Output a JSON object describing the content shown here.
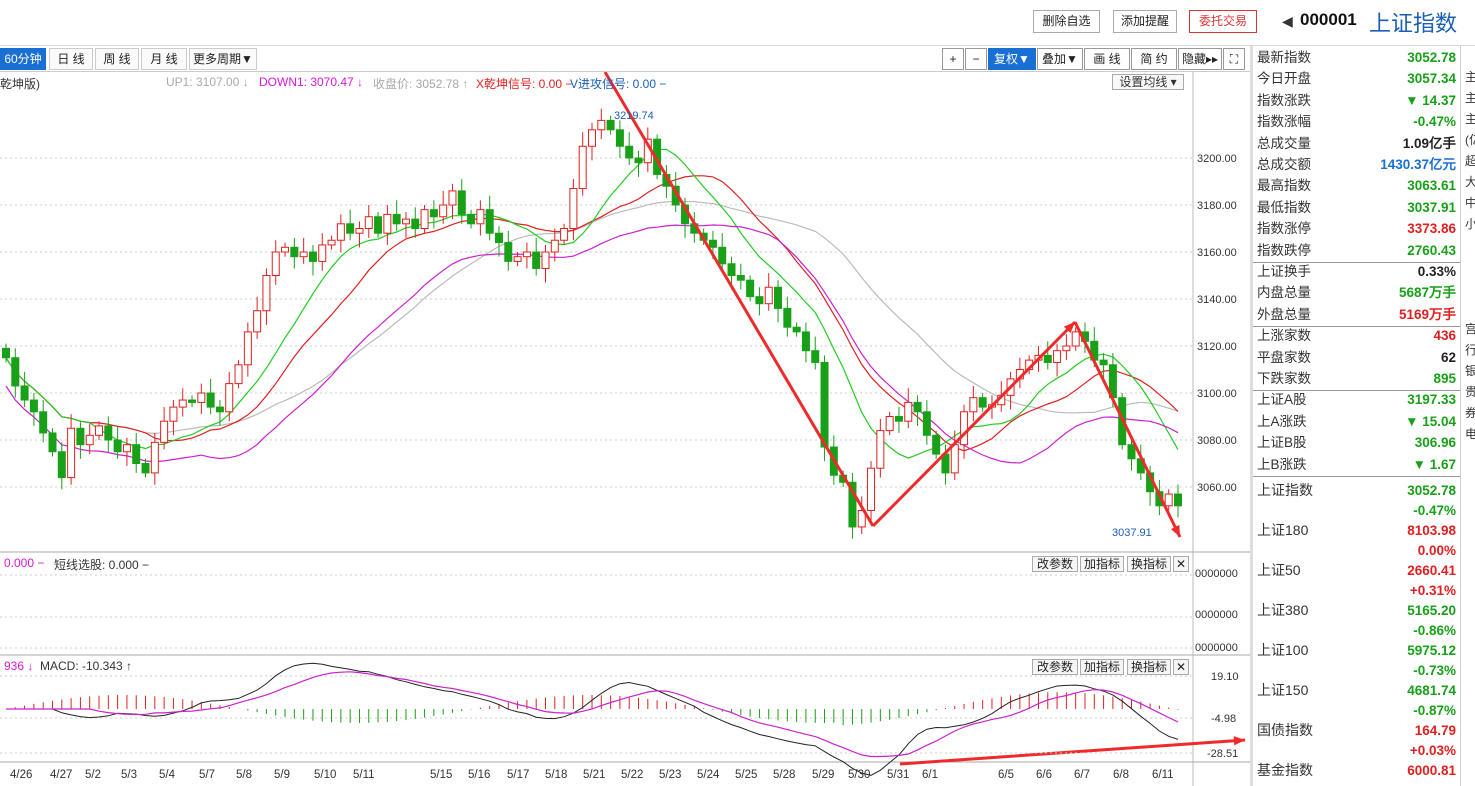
{
  "header": {
    "btn_del": "删除自选",
    "btn_alert": "添加提醒",
    "btn_trade": "委托交易",
    "code": "000001",
    "name": "上证指数"
  },
  "periods": [
    "60分钟",
    "日 线",
    "周 线",
    "月 线",
    "更多周期▼"
  ],
  "tools": [
    "+",
    "−",
    "复权▼",
    "叠加▼",
    "画 线",
    "简 约",
    "隐藏▸▸",
    "⛶"
  ],
  "legend": {
    "ver": "乾坤版)",
    "up1": "UP1: 3107.00 ↓",
    "down1": "DOWN1: 3070.47 ↓",
    "close": "收盘价: 3052.78 ↑",
    "x": "X乾坤信号: 0.00 −",
    "v": "V进攻信号: 0.00 −",
    "setma": "设置均线 ▾"
  },
  "price_axis": [
    "3200.00",
    "3180.00",
    "3160.00",
    "3140.00",
    "3120.00",
    "3100.00",
    "3080.00",
    "3060.00"
  ],
  "annot": {
    "high": "3219.74",
    "low": "3037.91"
  },
  "vol": {
    "label": "0.000 −",
    "label2": "短线选股: 0.000 −",
    "axis": [
      "0000000",
      "0000000",
      "0000000"
    ]
  },
  "macd": {
    "label": "936 ↓",
    "label2": "MACD: -10.343 ↑",
    "axis": [
      "19.10",
      "-4.98",
      "-28.51"
    ]
  },
  "panel_btns": [
    "改参数",
    "加指标",
    "换指标",
    "✕"
  ],
  "dates": [
    "4/26",
    "4/27",
    "5/2",
    "5/3",
    "5/4",
    "5/7",
    "5/8",
    "5/9",
    "5/10",
    "5/11",
    "5/15",
    "5/16",
    "5/17",
    "5/18",
    "5/21",
    "5/22",
    "5/23",
    "5/24",
    "5/25",
    "5/28",
    "5/29",
    "5/30",
    "5/31",
    "6/1",
    "6/5",
    "6/6",
    "6/7",
    "6/8",
    "6/11"
  ],
  "side": [
    {
      "l": "最新指数",
      "v": "3052.78",
      "c": "#18a018"
    },
    {
      "l": "今日开盘",
      "v": "3057.34",
      "c": "#18a018"
    },
    {
      "l": "指数涨跌",
      "v": "▼ 14.37",
      "c": "#18a018"
    },
    {
      "l": "指数涨幅",
      "v": "-0.47%",
      "c": "#18a018"
    },
    {
      "l": "总成交量",
      "v": "1.09亿手",
      "c": "#222"
    },
    {
      "l": "总成交额",
      "v": "1430.37亿元",
      "c": "#1a6fd4"
    },
    {
      "l": "最高指数",
      "v": "3063.61",
      "c": "#18a018"
    },
    {
      "l": "最低指数",
      "v": "3037.91",
      "c": "#18a018"
    },
    {
      "l": "指数涨停",
      "v": "3373.86",
      "c": "#e02020"
    },
    {
      "l": "指数跌停",
      "v": "2760.43",
      "c": "#18a018"
    },
    {
      "l": "上证换手",
      "v": "0.33%",
      "c": "#222"
    },
    {
      "l": "内盘总量",
      "v": "5687万手",
      "c": "#18a018"
    },
    {
      "l": "外盘总量",
      "v": "5169万手",
      "c": "#e02020"
    },
    {
      "l": "上涨家数",
      "v": "436",
      "c": "#e02020"
    },
    {
      "l": "平盘家数",
      "v": "62",
      "c": "#222"
    },
    {
      "l": "下跌家数",
      "v": "895",
      "c": "#18a018"
    },
    {
      "l": "上证A股",
      "v": "3197.33",
      "c": "#18a018"
    },
    {
      "l": "上A涨跌",
      "v": "▼ 15.04",
      "c": "#18a018"
    },
    {
      "l": "上证B股",
      "v": "306.96",
      "c": "#18a018"
    },
    {
      "l": "上B涨跌",
      "v": "▼ 1.67",
      "c": "#18a018"
    }
  ],
  "side2": [
    {
      "l": "上证指数",
      "v": "3052.78",
      "p": "-0.47%",
      "c": "#18a018"
    },
    {
      "l": "上证180",
      "v": "8103.98",
      "p": "0.00%",
      "c": "#e02020"
    },
    {
      "l": "上证50",
      "v": "2660.41",
      "p": "+0.31%",
      "c": "#e02020"
    },
    {
      "l": "上证380",
      "v": "5165.20",
      "p": "-0.86%",
      "c": "#18a018"
    },
    {
      "l": "上证100",
      "v": "5975.12",
      "p": "-0.73%",
      "c": "#18a018"
    },
    {
      "l": "上证150",
      "v": "4681.74",
      "p": "-0.87%",
      "c": "#18a018"
    },
    {
      "l": "国债指数",
      "v": "164.79",
      "p": "+0.03%",
      "c": "#e02020"
    },
    {
      "l": "基金指数",
      "v": "6000.81",
      "p": "",
      "c": "#e02020"
    }
  ],
  "edge": [
    "主",
    "主",
    "主",
    "(亿",
    "超",
    "大",
    "中",
    "小",
    "",
    "",
    "",
    "",
    "宫",
    "行",
    "银",
    "贵",
    "券",
    "电"
  ],
  "chart_data": {
    "type": "candlestick",
    "ylim": [
      3040,
      3225
    ],
    "high_mark": 3219.74,
    "low_mark": 3037.91,
    "note": "hourly candles, approximate"
  }
}
